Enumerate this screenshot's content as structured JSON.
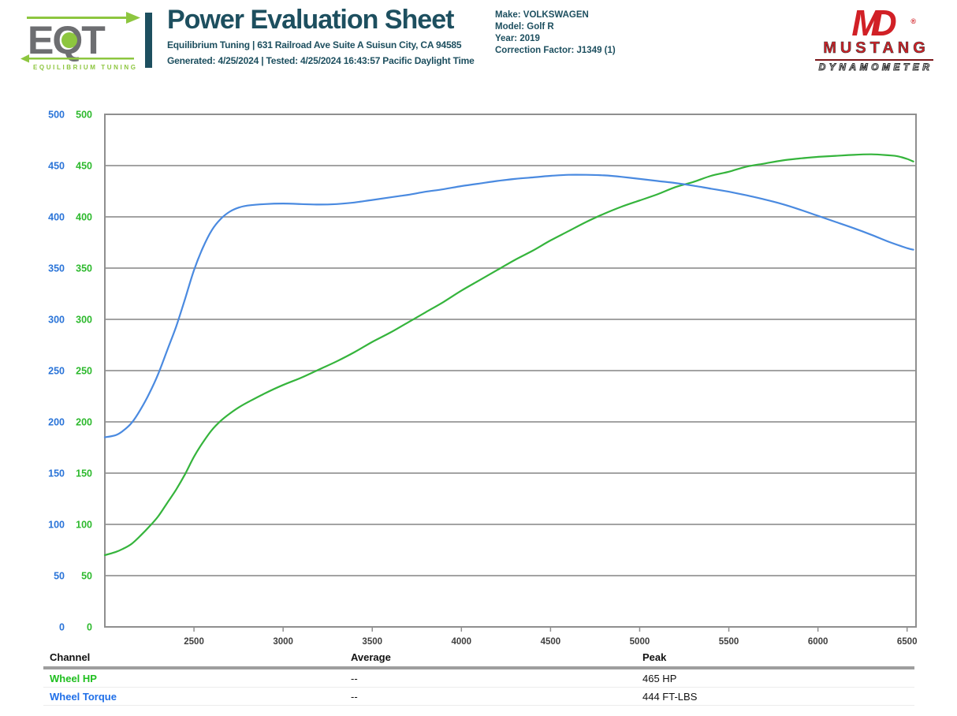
{
  "header": {
    "eqt_logo_text": "EQT",
    "eqt_tagline": "EQUILIBRIUM TUNING",
    "title": "Power Evaluation Sheet",
    "address_line": "Equilibrium Tuning | 631 Railroad Ave Suite A Suisun City, CA 94585",
    "generated_line": "Generated: 4/25/2024 | Tested: 4/25/2024 16:43:57 Pacific Daylight Time",
    "vehicle_lines": [
      "Make: VOLKSWAGEN",
      "Model: Golf R",
      "Year: 2019",
      "Correction Factor: J1349 (1)"
    ],
    "mustang_logo": {
      "monogram": "MD",
      "registered": "®",
      "name": "MUSTANG",
      "subname": "DYNAMOMETER"
    }
  },
  "chart_data": {
    "type": "line",
    "x_min": 2000,
    "x_max": 6550,
    "x_ticks": [
      2500,
      3000,
      3500,
      4000,
      4500,
      5000,
      5500,
      6000,
      6500
    ],
    "y_min": 0,
    "y_max": 500,
    "y_ticks": [
      0,
      50,
      100,
      150,
      200,
      250,
      300,
      350,
      400,
      450,
      500
    ],
    "grid": "horizontal",
    "legend_position": "none",
    "axis_label_columns": [
      {
        "name": "torque-scale",
        "color": "#2a74d8"
      },
      {
        "name": "hp-scale",
        "color": "#2db92d"
      }
    ],
    "tick_label_color": "#3f3f3f",
    "grid_color": "#a3a3a3",
    "border_color": "#8f8f8f",
    "series": [
      {
        "name": "Wheel HP",
        "unit": "HP",
        "color": "#35b43c",
        "points": [
          [
            2000,
            70
          ],
          [
            2060,
            73
          ],
          [
            2100,
            76
          ],
          [
            2150,
            81
          ],
          [
            2200,
            89
          ],
          [
            2250,
            98
          ],
          [
            2300,
            108
          ],
          [
            2350,
            121
          ],
          [
            2400,
            134
          ],
          [
            2450,
            149
          ],
          [
            2500,
            166
          ],
          [
            2550,
            180
          ],
          [
            2600,
            192
          ],
          [
            2650,
            201
          ],
          [
            2700,
            208
          ],
          [
            2750,
            214
          ],
          [
            2800,
            219
          ],
          [
            2900,
            228
          ],
          [
            3000,
            236
          ],
          [
            3100,
            243
          ],
          [
            3200,
            251
          ],
          [
            3300,
            259
          ],
          [
            3400,
            268
          ],
          [
            3500,
            278
          ],
          [
            3600,
            287
          ],
          [
            3700,
            297
          ],
          [
            3800,
            307
          ],
          [
            3900,
            317
          ],
          [
            4000,
            328
          ],
          [
            4100,
            338
          ],
          [
            4200,
            348
          ],
          [
            4300,
            358
          ],
          [
            4400,
            367
          ],
          [
            4500,
            377
          ],
          [
            4600,
            386
          ],
          [
            4700,
            395
          ],
          [
            4800,
            403
          ],
          [
            4900,
            410
          ],
          [
            5000,
            416
          ],
          [
            5100,
            422
          ],
          [
            5200,
            429
          ],
          [
            5300,
            434
          ],
          [
            5400,
            440
          ],
          [
            5500,
            444
          ],
          [
            5600,
            449
          ],
          [
            5700,
            452
          ],
          [
            5800,
            455
          ],
          [
            5900,
            457
          ],
          [
            6000,
            458.5
          ],
          [
            6100,
            459.5
          ],
          [
            6200,
            460.5
          ],
          [
            6300,
            461
          ],
          [
            6400,
            460
          ],
          [
            6450,
            459
          ],
          [
            6500,
            456.5
          ],
          [
            6535,
            454
          ]
        ]
      },
      {
        "name": "Wheel Torque",
        "unit": "FT-LBS",
        "color": "#4a8ae0",
        "points": [
          [
            2000,
            185
          ],
          [
            2060,
            187
          ],
          [
            2100,
            191
          ],
          [
            2150,
            199
          ],
          [
            2200,
            212
          ],
          [
            2250,
            228
          ],
          [
            2300,
            247
          ],
          [
            2350,
            270
          ],
          [
            2400,
            293
          ],
          [
            2450,
            320
          ],
          [
            2500,
            348
          ],
          [
            2550,
            370
          ],
          [
            2600,
            387
          ],
          [
            2650,
            398
          ],
          [
            2700,
            405
          ],
          [
            2750,
            409
          ],
          [
            2800,
            411
          ],
          [
            2900,
            412.5
          ],
          [
            3000,
            413
          ],
          [
            3100,
            412.5
          ],
          [
            3200,
            412
          ],
          [
            3300,
            412.5
          ],
          [
            3400,
            414
          ],
          [
            3500,
            416.5
          ],
          [
            3600,
            419
          ],
          [
            3700,
            421.5
          ],
          [
            3800,
            424.5
          ],
          [
            3900,
            427
          ],
          [
            4000,
            430
          ],
          [
            4100,
            432.5
          ],
          [
            4200,
            435
          ],
          [
            4300,
            437
          ],
          [
            4400,
            438.5
          ],
          [
            4500,
            440
          ],
          [
            4600,
            441
          ],
          [
            4700,
            441
          ],
          [
            4800,
            440.5
          ],
          [
            4900,
            439
          ],
          [
            5000,
            437
          ],
          [
            5100,
            435
          ],
          [
            5200,
            433
          ],
          [
            5300,
            430.5
          ],
          [
            5400,
            427.5
          ],
          [
            5500,
            424.5
          ],
          [
            5600,
            421
          ],
          [
            5700,
            417
          ],
          [
            5800,
            412.5
          ],
          [
            5900,
            407
          ],
          [
            6000,
            401
          ],
          [
            6100,
            395
          ],
          [
            6200,
            389
          ],
          [
            6300,
            382.5
          ],
          [
            6400,
            375.5
          ],
          [
            6500,
            369.5
          ],
          [
            6535,
            368
          ]
        ]
      }
    ]
  },
  "table": {
    "headers": [
      "Channel",
      "Average",
      "Peak"
    ],
    "rows": [
      {
        "channel": "Wheel HP",
        "average": "--",
        "peak": "465 HP",
        "color": "#1fbf1f"
      },
      {
        "channel": "Wheel Torque",
        "average": "--",
        "peak": "444 FT-LBS",
        "color": "#1f6fe8"
      }
    ]
  }
}
